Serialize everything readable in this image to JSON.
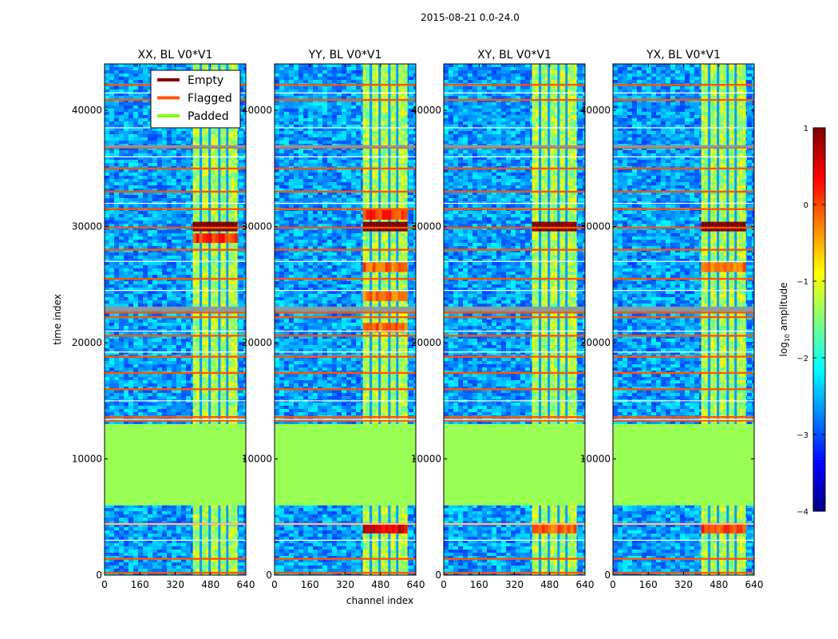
{
  "figure": {
    "suptitle": "2015-08-21 0.0-24.0",
    "xlabel": "channel index",
    "ylabel": "time index"
  },
  "colorbar": {
    "label_prefix": "log",
    "label_sub": "10",
    "label_suffix": " amplitude",
    "range": [
      -4,
      1
    ],
    "ticks": [
      1,
      0,
      -1,
      -2,
      -3,
      -4
    ],
    "tick_labels": [
      "1",
      "0",
      "−1",
      "−2",
      "−3",
      "−4"
    ],
    "colormap": "jet"
  },
  "legend": {
    "position": "upper-right of first panel",
    "items": [
      {
        "label": "Empty",
        "color": "#800000"
      },
      {
        "label": "Flagged",
        "color": "#ff5500"
      },
      {
        "label": "Padded",
        "color": "#7fff00"
      }
    ]
  },
  "chart_data": {
    "type": "heatmap",
    "x_range": [
      0,
      640
    ],
    "y_range": [
      0,
      44000
    ],
    "x_ticks": [
      0,
      160,
      320,
      480,
      640
    ],
    "y_ticks": [
      0,
      10000,
      20000,
      30000,
      40000
    ],
    "x_tick_labels": [
      "0",
      "160",
      "320",
      "480",
      "640"
    ],
    "y_tick_labels": [
      "0",
      "10000",
      "20000",
      "30000",
      "40000"
    ],
    "padded_region": [
      6000,
      13000
    ],
    "flagged_rows": [
      200,
      1400,
      4400,
      13300,
      13600,
      16000,
      17400,
      18800,
      20600,
      22200,
      22600,
      25500,
      28000,
      29900,
      31500,
      33000,
      35000,
      36800,
      40900,
      42200
    ],
    "thin_white_rows": [
      3000,
      4400,
      13400,
      15000,
      19200,
      21000,
      24500,
      27000,
      32000,
      36000,
      38500,
      41500
    ],
    "grey_rows": [
      22800,
      23000,
      36900
    ],
    "bright_channel_band": [
      400,
      600
    ],
    "gap_channels": [
      436,
      476,
      520,
      556
    ],
    "panels": [
      {
        "title": "XX, BL V0*V1",
        "hot_spots": [
          [
            30000,
            1.5
          ],
          [
            29000,
            0.5
          ]
        ]
      },
      {
        "title": "YY, BL V0*V1",
        "hot_spots": [
          [
            30000,
            1.5
          ],
          [
            31000,
            0.4
          ],
          [
            4000,
            0.8
          ],
          [
            26500,
            0.2
          ],
          [
            24000,
            0.1
          ],
          [
            21300,
            0.2
          ]
        ]
      },
      {
        "title": "XY, BL V0*V1",
        "hot_spots": [
          [
            30000,
            1.5
          ],
          [
            4000,
            0.2
          ]
        ]
      },
      {
        "title": "YX, BL V0*V1",
        "hot_spots": [
          [
            30000,
            1.5
          ],
          [
            4000,
            0.3
          ],
          [
            26500,
            0.1
          ]
        ]
      }
    ]
  }
}
